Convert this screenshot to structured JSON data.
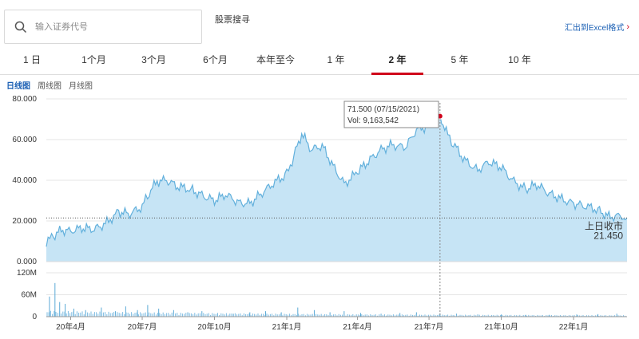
{
  "search": {
    "placeholder": "输入证券代号"
  },
  "header": {
    "stock_search": "股票搜寻",
    "export_label": "汇出到Excel格式"
  },
  "range_tabs": [
    {
      "label": "1 日"
    },
    {
      "label": "1个月"
    },
    {
      "label": "3个月"
    },
    {
      "label": "6个月"
    },
    {
      "label": "本年至今"
    },
    {
      "label": "1 年"
    },
    {
      "label": "2 年",
      "active": true
    },
    {
      "label": "5 年"
    },
    {
      "label": "10 年"
    }
  ],
  "chart_tabs": [
    {
      "label": "日线图",
      "active": true
    },
    {
      "label": "周线图"
    },
    {
      "label": "月线图"
    }
  ],
  "colors": {
    "accent": "#d0021b",
    "area_fill": "#c6e4f5",
    "line": "#62b0dc",
    "link": "#1a5fb4"
  },
  "chart_data": {
    "type": "area",
    "price_axis": {
      "ylim": [
        0,
        80
      ],
      "tick_labels": [
        "0.000",
        "20.000",
        "40.000",
        "60.000",
        "80.000"
      ]
    },
    "volume_axis": {
      "ylim": [
        0,
        120
      ],
      "tick_labels": [
        "0",
        "60M",
        "120M"
      ]
    },
    "x_tick_labels": [
      "20年4月",
      "20年7月",
      "20年10月",
      "21年1月",
      "21年4月",
      "21年7月",
      "21年10月",
      "22年1月"
    ],
    "x_range": [
      "2020-03-01",
      "2022-03-10"
    ],
    "price_series": [
      {
        "x": "2020-03-01",
        "y": 9.5
      },
      {
        "x": "2020-03-10",
        "y": 12.5
      },
      {
        "x": "2020-03-20",
        "y": 15.5
      },
      {
        "x": "2020-04-01",
        "y": 15.0
      },
      {
        "x": "2020-04-15",
        "y": 16.5
      },
      {
        "x": "2020-05-01",
        "y": 16.0
      },
      {
        "x": "2020-05-15",
        "y": 18.5
      },
      {
        "x": "2020-06-01",
        "y": 24.5
      },
      {
        "x": "2020-06-15",
        "y": 23.5
      },
      {
        "x": "2020-07-01",
        "y": 27.0
      },
      {
        "x": "2020-07-10",
        "y": 34.0
      },
      {
        "x": "2020-07-20",
        "y": 39.5
      },
      {
        "x": "2020-08-01",
        "y": 40.0
      },
      {
        "x": "2020-08-15",
        "y": 37.0
      },
      {
        "x": "2020-09-01",
        "y": 35.5
      },
      {
        "x": "2020-09-15",
        "y": 32.5
      },
      {
        "x": "2020-10-01",
        "y": 30.0
      },
      {
        "x": "2020-10-15",
        "y": 33.0
      },
      {
        "x": "2020-11-01",
        "y": 29.0
      },
      {
        "x": "2020-11-15",
        "y": 28.5
      },
      {
        "x": "2020-12-01",
        "y": 34.0
      },
      {
        "x": "2020-12-15",
        "y": 38.5
      },
      {
        "x": "2021-01-01",
        "y": 43.0
      },
      {
        "x": "2021-01-10",
        "y": 52.0
      },
      {
        "x": "2021-01-20",
        "y": 63.0
      },
      {
        "x": "2021-02-01",
        "y": 55.0
      },
      {
        "x": "2021-02-15",
        "y": 57.0
      },
      {
        "x": "2021-03-01",
        "y": 47.0
      },
      {
        "x": "2021-03-15",
        "y": 38.0
      },
      {
        "x": "2021-04-01",
        "y": 44.0
      },
      {
        "x": "2021-04-15",
        "y": 49.5
      },
      {
        "x": "2021-05-01",
        "y": 55.0
      },
      {
        "x": "2021-05-15",
        "y": 57.5
      },
      {
        "x": "2021-06-01",
        "y": 56.0
      },
      {
        "x": "2021-06-15",
        "y": 65.0
      },
      {
        "x": "2021-07-01",
        "y": 66.5
      },
      {
        "x": "2021-07-15",
        "y": 71.5
      },
      {
        "x": "2021-07-25",
        "y": 62.0
      },
      {
        "x": "2021-08-01",
        "y": 58.0
      },
      {
        "x": "2021-08-15",
        "y": 50.0
      },
      {
        "x": "2021-09-01",
        "y": 45.0
      },
      {
        "x": "2021-09-15",
        "y": 49.0
      },
      {
        "x": "2021-10-01",
        "y": 46.5
      },
      {
        "x": "2021-10-15",
        "y": 40.0
      },
      {
        "x": "2021-11-01",
        "y": 35.5
      },
      {
        "x": "2021-11-15",
        "y": 38.0
      },
      {
        "x": "2021-12-01",
        "y": 33.5
      },
      {
        "x": "2021-12-15",
        "y": 31.0
      },
      {
        "x": "2022-01-01",
        "y": 28.5
      },
      {
        "x": "2022-01-15",
        "y": 27.5
      },
      {
        "x": "2022-02-01",
        "y": 25.5
      },
      {
        "x": "2022-02-15",
        "y": 22.0
      },
      {
        "x": "2022-03-01",
        "y": 22.5
      },
      {
        "x": "2022-03-10",
        "y": 21.45
      }
    ],
    "volume_series": [
      {
        "x": "2020-03-05",
        "y": 55
      },
      {
        "x": "2020-03-12",
        "y": 92
      },
      {
        "x": "2020-03-18",
        "y": 40
      },
      {
        "x": "2020-03-25",
        "y": 35
      },
      {
        "x": "2020-04-05",
        "y": 22
      },
      {
        "x": "2020-04-20",
        "y": 18
      },
      {
        "x": "2020-05-10",
        "y": 25
      },
      {
        "x": "2020-05-28",
        "y": 15
      },
      {
        "x": "2020-06-10",
        "y": 28
      },
      {
        "x": "2020-06-25",
        "y": 18
      },
      {
        "x": "2020-07-08",
        "y": 32
      },
      {
        "x": "2020-07-22",
        "y": 22
      },
      {
        "x": "2020-08-10",
        "y": 18
      },
      {
        "x": "2020-08-28",
        "y": 12
      },
      {
        "x": "2020-09-15",
        "y": 15
      },
      {
        "x": "2020-10-05",
        "y": 10
      },
      {
        "x": "2020-10-25",
        "y": 8
      },
      {
        "x": "2020-11-15",
        "y": 12
      },
      {
        "x": "2020-12-05",
        "y": 15
      },
      {
        "x": "2020-12-25",
        "y": 12
      },
      {
        "x": "2021-01-15",
        "y": 25
      },
      {
        "x": "2021-02-05",
        "y": 18
      },
      {
        "x": "2021-02-25",
        "y": 12
      },
      {
        "x": "2021-03-15",
        "y": 15
      },
      {
        "x": "2021-04-05",
        "y": 10
      },
      {
        "x": "2021-05-01",
        "y": 8
      },
      {
        "x": "2021-05-25",
        "y": 10
      },
      {
        "x": "2021-06-15",
        "y": 12
      },
      {
        "x": "2021-07-15",
        "y": 9.16
      },
      {
        "x": "2021-08-05",
        "y": 8
      },
      {
        "x": "2021-09-01",
        "y": 6
      },
      {
        "x": "2021-10-01",
        "y": 6
      },
      {
        "x": "2021-11-01",
        "y": 5
      },
      {
        "x": "2021-12-01",
        "y": 5
      },
      {
        "x": "2022-01-05",
        "y": 6
      },
      {
        "x": "2022-02-01",
        "y": 7
      },
      {
        "x": "2022-02-25",
        "y": 8
      }
    ],
    "reference_line": {
      "value": 21.45,
      "label": "上日收市",
      "value_label": "21.450"
    },
    "tooltip": {
      "date": "2021-07-15",
      "price": 71.5,
      "line1": "71.500 (07/15/2021)",
      "line2": "Vol: 9,163,542"
    }
  }
}
